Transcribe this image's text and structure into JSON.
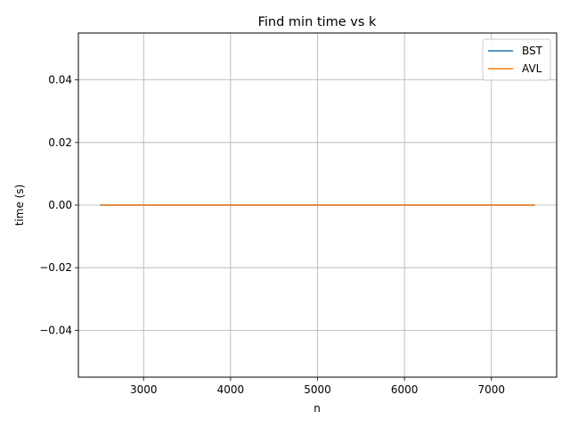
{
  "chart_data": {
    "type": "line",
    "title": "Find min time vs k",
    "xlabel": "n",
    "ylabel": "time (s)",
    "xlim": [
      2250,
      7750
    ],
    "ylim": [
      -0.055,
      0.055
    ],
    "xticks": [
      3000,
      4000,
      5000,
      6000,
      7000
    ],
    "yticks": [
      -0.04,
      -0.02,
      0.0,
      0.02,
      0.04
    ],
    "xtick_labels": [
      "3000",
      "4000",
      "5000",
      "6000",
      "7000"
    ],
    "ytick_labels": [
      "−0.04",
      "−0.02",
      "0.00",
      "0.02",
      "0.04"
    ],
    "grid": true,
    "legend_position": "top-right",
    "series": [
      {
        "name": "BST",
        "color": "#1f77b4",
        "x": [
          2500,
          3000,
          3500,
          4000,
          4500,
          5000,
          5500,
          6000,
          6500,
          7000,
          7500
        ],
        "y": [
          0,
          0,
          0,
          0,
          0,
          0,
          0,
          0,
          0,
          0,
          0
        ]
      },
      {
        "name": "AVL",
        "color": "#ff7f0e",
        "x": [
          2500,
          3000,
          3500,
          4000,
          4500,
          5000,
          5500,
          6000,
          6500,
          7000,
          7500
        ],
        "y": [
          0,
          0,
          0,
          0,
          0,
          0,
          0,
          0,
          0,
          0,
          0
        ]
      }
    ]
  }
}
